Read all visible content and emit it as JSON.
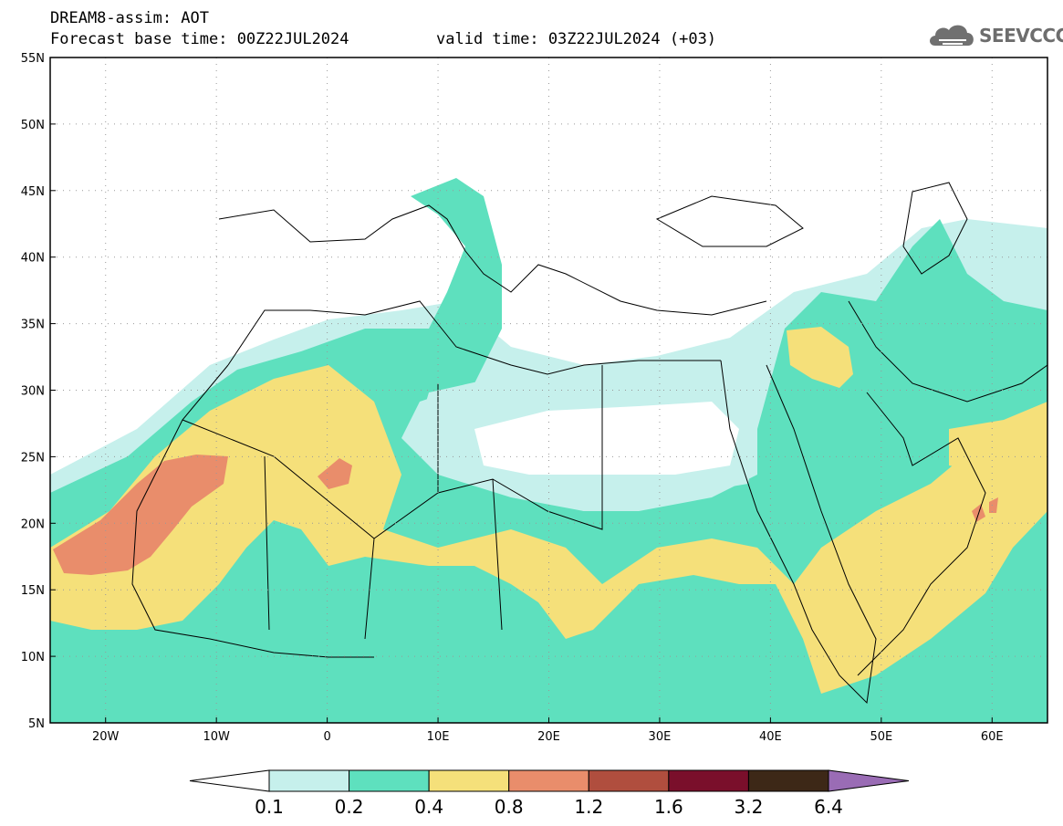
{
  "header": {
    "title": "DREAM8-assim: AOT",
    "base_time": "Forecast base time: 00Z22JUL2024",
    "valid_time": "valid time: 03Z22JUL2024 (+03)"
  },
  "logo": {
    "text": "SEEVCCC",
    "icon": "cloud-icon"
  },
  "map": {
    "lon_range": [
      -25,
      65
    ],
    "lat_range": [
      5,
      55
    ],
    "grid_lines": "dotted",
    "lat_labels": [
      "55N",
      "50N",
      "45N",
      "40N",
      "35N",
      "30N",
      "25N",
      "20N",
      "15N",
      "10N",
      "5N"
    ],
    "lon_labels": [
      "20W",
      "10W",
      "0",
      "10E",
      "20E",
      "30E",
      "40E",
      "50E",
      "60E"
    ]
  },
  "legend": {
    "thresholds": [
      "0.1",
      "0.2",
      "0.4",
      "0.8",
      "1.2",
      "1.6",
      "3.2",
      "6.4"
    ],
    "colors": [
      "#c6f0ec",
      "#5ee0be",
      "#f5e07a",
      "#e98d6b",
      "#b04e3e",
      "#7a0f2b",
      "#3d2817",
      "#9a6cb5"
    ],
    "triangle_low_color": "#ffffff",
    "triangle_high_color": "#9a6cb5"
  }
}
